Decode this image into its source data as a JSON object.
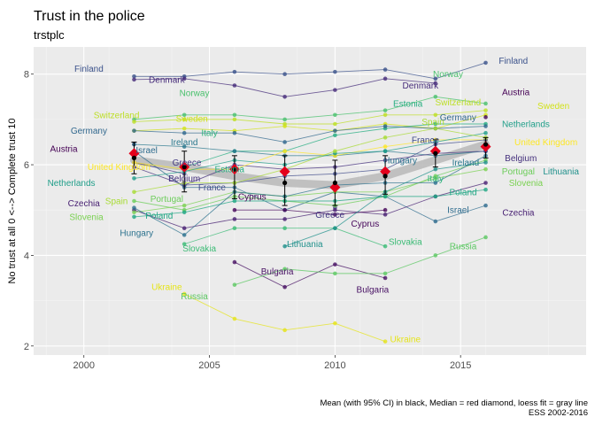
{
  "chart_data": {
    "type": "line",
    "title": "Trust in the police",
    "subtitle": "trstplc",
    "xlabel": "",
    "ylabel": "No trust at all 0 <--> Complete trust 10",
    "xlim": [
      1998,
      2020
    ],
    "ylim": [
      1.8,
      8.6
    ],
    "x_ticks": [
      2000,
      2005,
      2010,
      2015
    ],
    "y_ticks": [
      2,
      4,
      6,
      8
    ],
    "grid": true,
    "legend": "none",
    "caption_line1": "Mean (with 95% CI) in black, Median = red diamond, loess fit = gray line",
    "caption_line2": "ESS 2002-2016",
    "x": [
      2002,
      2004,
      2006,
      2008,
      2010,
      2012,
      2014,
      2016
    ],
    "series": [
      {
        "name": "Finland",
        "color": "#3b528b",
        "values": [
          7.95,
          7.95,
          8.05,
          8.0,
          8.05,
          8.1,
          7.9,
          8.25
        ]
      },
      {
        "name": "Denmark",
        "color": "#472d7b",
        "values": [
          7.88,
          7.9,
          7.75,
          7.5,
          7.65,
          7.9,
          7.8,
          null
        ]
      },
      {
        "name": "Norway",
        "color": "#4ac16d",
        "values": [
          7.0,
          7.1,
          7.1,
          7.0,
          7.1,
          7.2,
          7.5,
          7.35
        ]
      },
      {
        "name": "Switzerland",
        "color": "#bddf26",
        "values": [
          6.95,
          7.0,
          7.0,
          6.9,
          6.9,
          7.1,
          7.1,
          7.2
        ]
      },
      {
        "name": "Sweden",
        "color": "#d2e21b",
        "values": [
          6.75,
          6.8,
          6.75,
          6.85,
          6.75,
          6.9,
          6.8,
          7.1
        ]
      },
      {
        "name": "Austria",
        "color": "#440154",
        "values": [
          6.45,
          null,
          null,
          null,
          null,
          null,
          null,
          7.05
        ]
      },
      {
        "name": "Estonia",
        "color": "#26ad81",
        "values": [
          null,
          5.95,
          6.3,
          6.3,
          6.65,
          6.8,
          6.9,
          6.9
        ]
      },
      {
        "name": "Germany",
        "color": "#31688e",
        "values": [
          6.75,
          6.7,
          6.7,
          6.5,
          6.75,
          6.85,
          6.8,
          6.85
        ]
      },
      {
        "name": "Ireland",
        "color": "#2a788e",
        "values": [
          6.45,
          6.4,
          6.3,
          6.2,
          6.2,
          6.3,
          6.2,
          6.3
        ]
      },
      {
        "name": "Israel",
        "color": "#2f6c8e",
        "values": [
          6.3,
          5.5,
          5.5,
          5.0,
          5.4,
          5.3,
          4.75,
          5.1
        ]
      },
      {
        "name": "Greece",
        "color": "#443a83",
        "values": [
          6.05,
          5.8,
          null,
          null,
          5.05,
          null,
          null,
          null
        ]
      },
      {
        "name": "Belgium",
        "color": "#46327e",
        "values": [
          5.95,
          5.55,
          6.0,
          5.9,
          5.95,
          6.1,
          6.25,
          6.3
        ]
      },
      {
        "name": "United Kingdom",
        "color": "#fde725",
        "values": [
          6.05,
          5.9,
          5.9,
          6.3,
          6.2,
          6.4,
          6.55,
          6.55
        ]
      },
      {
        "name": "Netherlands",
        "color": "#1f9e89",
        "values": [
          5.7,
          5.85,
          6.1,
          6.0,
          6.25,
          6.3,
          6.5,
          6.7
        ]
      },
      {
        "name": "France",
        "color": "#3e4a89",
        "values": [
          null,
          5.55,
          5.6,
          5.75,
          5.8,
          5.9,
          6.45,
          6.55
        ]
      },
      {
        "name": "Spain",
        "color": "#a8db34",
        "values": [
          5.4,
          5.6,
          5.6,
          5.9,
          6.3,
          6.6,
          6.8,
          6.6
        ]
      },
      {
        "name": "Portugal",
        "color": "#6ccd5a",
        "values": [
          5.2,
          5.0,
          5.3,
          5.2,
          5.1,
          5.3,
          5.75,
          6.1
        ]
      },
      {
        "name": "Czechia",
        "color": "#482173",
        "values": [
          5.0,
          4.6,
          4.8,
          4.8,
          5.0,
          4.9,
          5.3,
          5.6
        ]
      },
      {
        "name": "Slovenia",
        "color": "#7ad151",
        "values": [
          4.95,
          5.1,
          5.4,
          5.3,
          5.4,
          5.4,
          5.7,
          5.9
        ]
      },
      {
        "name": "Poland",
        "color": "#22a785",
        "values": [
          4.85,
          4.95,
          5.2,
          5.2,
          5.2,
          5.3,
          5.3,
          5.45
        ]
      },
      {
        "name": "Hungary",
        "color": "#2c728e",
        "values": [
          5.05,
          4.45,
          5.4,
          5.3,
          5.55,
          5.6,
          5.6,
          6.2
        ]
      },
      {
        "name": "Slovakia",
        "color": "#3bbb75",
        "values": [
          null,
          4.25,
          4.6,
          4.6,
          4.6,
          4.2,
          null,
          null
        ]
      },
      {
        "name": "Cyprus",
        "color": "#450559",
        "values": [
          null,
          null,
          5.0,
          5.0,
          4.9,
          5.0,
          null,
          null
        ]
      },
      {
        "name": "Lithuania",
        "color": "#21918c",
        "values": [
          null,
          null,
          null,
          4.2,
          4.6,
          5.4,
          5.9,
          6.05
        ]
      },
      {
        "name": "Bulgaria",
        "color": "#471063",
        "values": [
          null,
          null,
          3.85,
          3.3,
          3.8,
          3.5,
          null,
          null
        ]
      },
      {
        "name": "Russia",
        "color": "#5cc863",
        "values": [
          null,
          null,
          3.35,
          3.7,
          3.6,
          3.6,
          4.0,
          4.4
        ]
      },
      {
        "name": "Ukraine",
        "color": "#e5e419",
        "values": [
          null,
          3.15,
          2.6,
          2.35,
          2.5,
          2.1,
          null,
          null
        ]
      }
    ],
    "mean": {
      "color": "#000000",
      "values": [
        6.15,
        5.95,
        5.9,
        5.6,
        5.6,
        5.75,
        6.25,
        6.45
      ],
      "ci_low": [
        5.8,
        5.4,
        5.25,
        5.1,
        5.1,
        5.35,
        5.95,
        6.15
      ],
      "ci_high": [
        6.5,
        6.3,
        6.2,
        6.2,
        6.1,
        6.2,
        6.55,
        6.6
      ]
    },
    "median": {
      "color": "#e4001b",
      "values": [
        6.25,
        5.95,
        5.9,
        5.85,
        5.5,
        5.85,
        6.3,
        6.4
      ]
    },
    "loess": {
      "color": "#bbbbbb",
      "values": [
        6.1,
        5.95,
        5.75,
        5.6,
        5.55,
        5.75,
        6.1,
        6.45
      ]
    },
    "labels": [
      {
        "text": "Finland",
        "x": 2000.2,
        "y": 8.12,
        "color": "#3b528b"
      },
      {
        "text": "Denmark",
        "x": 2003.3,
        "y": 7.88,
        "color": "#472d7b"
      },
      {
        "text": "Norway",
        "x": 2004.4,
        "y": 7.58,
        "color": "#4ac16d"
      },
      {
        "text": "Switzerland",
        "x": 2001.3,
        "y": 7.1,
        "color": "#bddf26"
      },
      {
        "text": "Sweden",
        "x": 2004.3,
        "y": 7.02,
        "color": "#d2e21b"
      },
      {
        "text": "Germany",
        "x": 2000.2,
        "y": 6.75,
        "color": "#31688e"
      },
      {
        "text": "Italy",
        "x": 2005.0,
        "y": 6.7,
        "color": "#2fb47c"
      },
      {
        "text": "Ireland",
        "x": 2004.0,
        "y": 6.5,
        "color": "#2a788e"
      },
      {
        "text": "Austria",
        "x": 1999.2,
        "y": 6.35,
        "color": "#440154"
      },
      {
        "text": "Israel",
        "x": 2002.5,
        "y": 6.32,
        "color": "#2f6c8e"
      },
      {
        "text": "Greece",
        "x": 2004.1,
        "y": 6.05,
        "color": "#443a83"
      },
      {
        "text": "Estonia",
        "x": 2005.8,
        "y": 5.9,
        "color": "#26ad81"
      },
      {
        "text": "United Kingdom",
        "x": 2001.4,
        "y": 5.95,
        "color": "#fde725"
      },
      {
        "text": "Belgium",
        "x": 2004.0,
        "y": 5.7,
        "color": "#46327e"
      },
      {
        "text": "France",
        "x": 2005.1,
        "y": 5.5,
        "color": "#3e4a89"
      },
      {
        "text": "Netherlands",
        "x": 1999.5,
        "y": 5.6,
        "color": "#1f9e89"
      },
      {
        "text": "Cyprus",
        "x": 2006.7,
        "y": 5.3,
        "color": "#450559"
      },
      {
        "text": "Czechia",
        "x": 2000.0,
        "y": 5.15,
        "color": "#482173"
      },
      {
        "text": "Spain",
        "x": 2001.3,
        "y": 5.2,
        "color": "#a8db34"
      },
      {
        "text": "Portugal",
        "x": 2003.3,
        "y": 5.25,
        "color": "#6ccd5a"
      },
      {
        "text": "Slovenia",
        "x": 2000.1,
        "y": 4.85,
        "color": "#7ad151"
      },
      {
        "text": "Poland",
        "x": 2003.0,
        "y": 4.88,
        "color": "#22a785"
      },
      {
        "text": "Hungary",
        "x": 2002.1,
        "y": 4.5,
        "color": "#2c728e"
      },
      {
        "text": "Slovakia",
        "x": 2004.6,
        "y": 4.15,
        "color": "#3bbb75"
      },
      {
        "text": "Greece",
        "x": 2009.8,
        "y": 4.9,
        "color": "#443a83"
      },
      {
        "text": "Cyprus",
        "x": 2011.2,
        "y": 4.7,
        "color": "#450559"
      },
      {
        "text": "Lithuania",
        "x": 2008.8,
        "y": 4.25,
        "color": "#21918c"
      },
      {
        "text": "Bulgaria",
        "x": 2007.7,
        "y": 3.65,
        "color": "#471063"
      },
      {
        "text": "Bulgaria",
        "x": 2011.5,
        "y": 3.25,
        "color": "#471063"
      },
      {
        "text": "Slovakia",
        "x": 2012.8,
        "y": 4.3,
        "color": "#3bbb75"
      },
      {
        "text": "Ukraine",
        "x": 2003.3,
        "y": 3.3,
        "color": "#e5e419"
      },
      {
        "text": "Russia",
        "x": 2004.4,
        "y": 3.1,
        "color": "#5cc863"
      },
      {
        "text": "Ukraine",
        "x": 2012.8,
        "y": 2.15,
        "color": "#e5e419"
      },
      {
        "text": "Russia",
        "x": 2015.1,
        "y": 4.2,
        "color": "#5cc863"
      },
      {
        "text": "Finland",
        "x": 2017.1,
        "y": 8.3,
        "color": "#3b528b"
      },
      {
        "text": "Norway",
        "x": 2014.5,
        "y": 8.0,
        "color": "#4ac16d"
      },
      {
        "text": "Denmark",
        "x": 2013.4,
        "y": 7.75,
        "color": "#472d7b"
      },
      {
        "text": "Austria",
        "x": 2017.2,
        "y": 7.6,
        "color": "#440154"
      },
      {
        "text": "Estonia",
        "x": 2012.9,
        "y": 7.35,
        "color": "#26ad81"
      },
      {
        "text": "Switzerland",
        "x": 2014.9,
        "y": 7.38,
        "color": "#bddf26"
      },
      {
        "text": "Sweden",
        "x": 2018.7,
        "y": 7.3,
        "color": "#d2e21b"
      },
      {
        "text": "Germany",
        "x": 2014.9,
        "y": 7.05,
        "color": "#31688e"
      },
      {
        "text": "Spain",
        "x": 2013.9,
        "y": 6.95,
        "color": "#a8db34"
      },
      {
        "text": "Netherlands",
        "x": 2017.6,
        "y": 6.9,
        "color": "#1f9e89"
      },
      {
        "text": "France",
        "x": 2013.6,
        "y": 6.55,
        "color": "#3e4a89"
      },
      {
        "text": "United Kingdom",
        "x": 2018.4,
        "y": 6.5,
        "color": "#fde725"
      },
      {
        "text": "Hungary",
        "x": 2012.6,
        "y": 6.1,
        "color": "#2c728e"
      },
      {
        "text": "Belgium",
        "x": 2017.4,
        "y": 6.15,
        "color": "#46327e"
      },
      {
        "text": "Ireland",
        "x": 2015.2,
        "y": 6.05,
        "color": "#2a788e"
      },
      {
        "text": "Lithuania",
        "x": 2019.0,
        "y": 5.85,
        "color": "#21918c"
      },
      {
        "text": "Portugal",
        "x": 2017.3,
        "y": 5.85,
        "color": "#6ccd5a"
      },
      {
        "text": "Italy",
        "x": 2014.0,
        "y": 5.7,
        "color": "#2fb47c"
      },
      {
        "text": "Slovenia",
        "x": 2017.6,
        "y": 5.6,
        "color": "#7ad151"
      },
      {
        "text": "Poland",
        "x": 2015.1,
        "y": 5.4,
        "color": "#22a785"
      },
      {
        "text": "Israel",
        "x": 2014.9,
        "y": 5.0,
        "color": "#2f6c8e"
      },
      {
        "text": "Czechia",
        "x": 2017.3,
        "y": 4.95,
        "color": "#482173"
      }
    ]
  }
}
